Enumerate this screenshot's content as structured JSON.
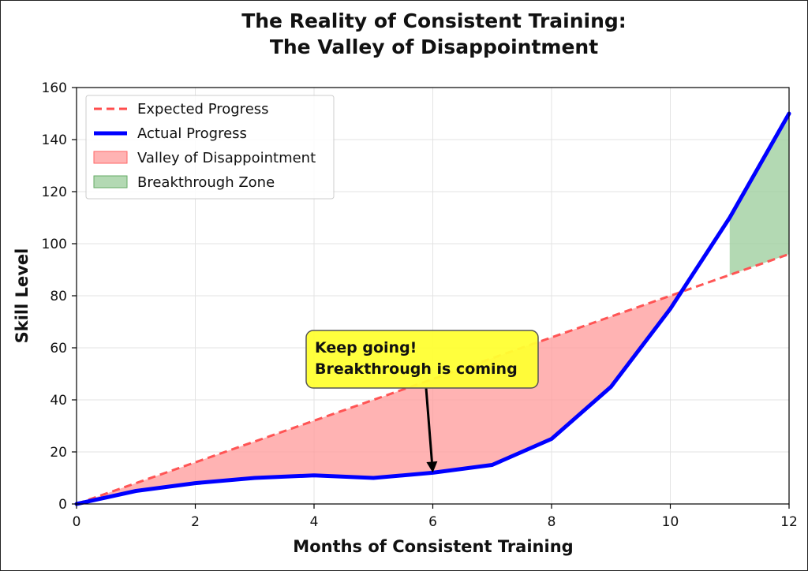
{
  "chart_data": {
    "type": "line",
    "title_line1": "The Reality of Consistent Training:",
    "title_line2": "The Valley of Disappointment",
    "xlabel": "Months of Consistent Training",
    "ylabel": "Skill Level",
    "xlim": [
      0,
      12
    ],
    "ylim": [
      0,
      160
    ],
    "xticks": [
      0,
      2,
      4,
      6,
      8,
      10,
      12
    ],
    "yticks": [
      0,
      20,
      40,
      60,
      80,
      100,
      120,
      140,
      160
    ],
    "grid": true,
    "legend_position": "top-left",
    "series": [
      {
        "name": "Expected Progress",
        "style": "dashed",
        "color": "#ff4d4d",
        "x": [
          0,
          12
        ],
        "y": [
          0,
          96
        ]
      },
      {
        "name": "Actual Progress",
        "style": "solid",
        "color": "#0000ff",
        "x": [
          0,
          1,
          2,
          3,
          4,
          5,
          6,
          7,
          8,
          9,
          10,
          11,
          12
        ],
        "y": [
          0,
          5,
          8,
          10,
          11,
          10,
          12,
          15,
          25,
          45,
          75,
          110,
          150
        ]
      }
    ],
    "fills": [
      {
        "name": "Valley of Disappointment",
        "color": "#ff9999",
        "between": [
          "Expected Progress",
          "Actual Progress"
        ],
        "where": "expected > actual"
      },
      {
        "name": "Breakthrough Zone",
        "color": "#99cc99",
        "between": [
          "Actual Progress",
          "Expected Progress"
        ],
        "x_range": [
          11,
          12
        ]
      }
    ],
    "annotation": {
      "line1": "Keep going!",
      "line2": "Breakthrough is coming",
      "box_color": "#ffff33",
      "arrow_target": {
        "x": 6,
        "y": 12
      },
      "text_anchor": {
        "x": 4.0,
        "y": 57
      }
    }
  }
}
